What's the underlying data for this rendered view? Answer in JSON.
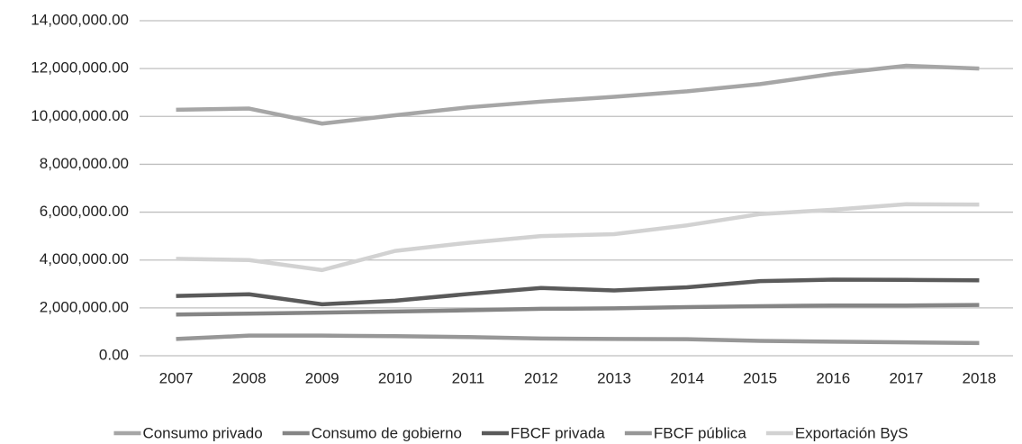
{
  "chart_data": {
    "type": "line",
    "categories": [
      "2007",
      "2008",
      "2009",
      "2010",
      "2011",
      "2012",
      "2013",
      "2014",
      "2015",
      "2016",
      "2017",
      "2018"
    ],
    "series": [
      {
        "name": "Consumo privado",
        "color": "#a6a6a6",
        "values": [
          10280000,
          10330000,
          9700000,
          10050000,
          10380000,
          10620000,
          10820000,
          11050000,
          11350000,
          11780000,
          12120000,
          12000000
        ]
      },
      {
        "name": "Consumo de gobierno",
        "color": "#858585",
        "values": [
          1720000,
          1760000,
          1800000,
          1850000,
          1900000,
          1960000,
          1980000,
          2030000,
          2070000,
          2100000,
          2100000,
          2120000
        ]
      },
      {
        "name": "FBCF privada",
        "color": "#5a5a5a",
        "values": [
          2500000,
          2570000,
          2150000,
          2300000,
          2580000,
          2830000,
          2730000,
          2860000,
          3120000,
          3180000,
          3170000,
          3150000
        ]
      },
      {
        "name": "FBCF pública",
        "color": "#979797",
        "values": [
          700000,
          840000,
          840000,
          820000,
          780000,
          720000,
          700000,
          690000,
          620000,
          590000,
          560000,
          530000
        ]
      },
      {
        "name": "Exportación ByS",
        "color": "#d2d2d2",
        "values": [
          4050000,
          4000000,
          3580000,
          4380000,
          4720000,
          5000000,
          5080000,
          5450000,
          5920000,
          6100000,
          6330000,
          6320000
        ]
      }
    ],
    "ylim": [
      0,
      14000000
    ],
    "yticks": [
      {
        "value": 0,
        "label": "0.00"
      },
      {
        "value": 2000000,
        "label": "2,000,000.00"
      },
      {
        "value": 4000000,
        "label": "4,000,000.00"
      },
      {
        "value": 6000000,
        "label": "6,000,000.00"
      },
      {
        "value": 8000000,
        "label": "8,000,000.00"
      },
      {
        "value": 10000000,
        "label": "10,000,000.00"
      },
      {
        "value": 12000000,
        "label": "12,000,000.00"
      },
      {
        "value": 14000000,
        "label": "14,000,000.00"
      }
    ],
    "grid": true,
    "legend": "bottom"
  }
}
